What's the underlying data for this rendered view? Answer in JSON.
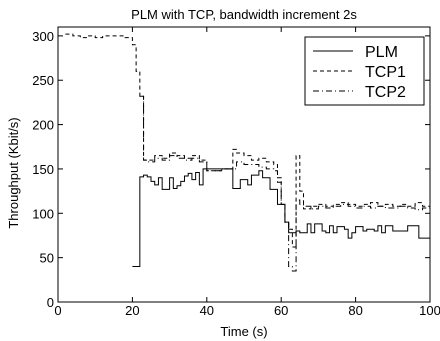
{
  "chart_data": {
    "type": "line",
    "title": "PLM with TCP, bandwidth increment 2s",
    "xlabel": "Time (s)",
    "ylabel": "Throughput (Kbit/s)",
    "xlim": [
      0,
      100
    ],
    "ylim": [
      0,
      310
    ],
    "xticks": [
      0,
      20,
      40,
      60,
      80,
      100
    ],
    "yticks": [
      0,
      50,
      100,
      150,
      200,
      250,
      300
    ],
    "grid": false,
    "legend_position": "top-right",
    "series": [
      {
        "name": "PLM",
        "style": "solid",
        "x": [
          20,
          22,
          22,
          23,
          24,
          25,
          26,
          27,
          28,
          29,
          30,
          31,
          32,
          33,
          34,
          35,
          36,
          37,
          38,
          39,
          40,
          41,
          42,
          43,
          44,
          45,
          46,
          47,
          48,
          49,
          50,
          51,
          52,
          53,
          54,
          55,
          56,
          57,
          58,
          59,
          60,
          61,
          62,
          63,
          64,
          65,
          66,
          67,
          68,
          69,
          70,
          71,
          72,
          73,
          74,
          75,
          76,
          77,
          78,
          79,
          80,
          81,
          82,
          83,
          84,
          85,
          86,
          87,
          88,
          89,
          90,
          91,
          92,
          93,
          94,
          95,
          96,
          97,
          98,
          99,
          100
        ],
        "y": [
          40,
          40,
          141,
          143,
          141,
          136,
          132,
          140,
          127,
          127,
          140,
          128,
          131,
          136,
          142,
          145,
          138,
          146,
          132,
          150,
          150,
          150,
          150,
          150,
          150,
          150,
          150,
          128,
          128,
          138,
          138,
          132,
          143,
          143,
          148,
          140,
          140,
          127,
          127,
          110,
          110,
          90,
          78,
          78,
          80,
          78,
          78,
          88,
          78,
          88,
          88,
          80,
          78,
          86,
          78,
          85,
          85,
          82,
          72,
          78,
          85,
          85,
          80,
          82,
          82,
          80,
          86,
          78,
          86,
          86,
          80,
          80,
          80,
          80,
          86,
          86,
          86,
          72,
          72,
          72,
          72
        ]
      },
      {
        "name": "TCP1",
        "style": "dashed",
        "x": [
          2,
          4,
          6,
          8,
          10,
          12,
          14,
          16,
          18,
          20,
          21,
          22,
          23,
          24,
          26,
          28,
          30,
          32,
          34,
          36,
          38,
          40,
          42,
          44,
          46,
          47,
          48,
          50,
          52,
          54,
          56,
          58,
          59,
          60,
          61,
          62,
          63,
          64,
          65,
          66,
          68,
          70,
          72,
          74,
          76,
          78,
          80,
          82,
          84,
          86,
          88,
          90,
          92,
          94,
          96,
          98,
          100
        ],
        "y": [
          302,
          300,
          298,
          300,
          298,
          300,
          300,
          300,
          298,
          290,
          260,
          232,
          160,
          160,
          165,
          162,
          168,
          165,
          162,
          165,
          160,
          148,
          148,
          150,
          150,
          172,
          168,
          165,
          160,
          162,
          158,
          155,
          140,
          110,
          90,
          82,
          62,
          165,
          125,
          105,
          108,
          110,
          108,
          110,
          112,
          110,
          108,
          110,
          112,
          108,
          110,
          108,
          110,
          108,
          112,
          108,
          112
        ]
      },
      {
        "name": "TCP2",
        "style": "dashdot",
        "x": [
          22,
          23,
          24,
          26,
          28,
          30,
          32,
          34,
          36,
          38,
          40,
          42,
          44,
          46,
          48,
          50,
          52,
          54,
          56,
          58,
          59,
          60,
          61,
          62,
          63,
          64,
          65,
          66,
          68,
          70,
          72,
          74,
          76,
          78,
          80,
          82,
          84,
          86,
          88,
          90,
          92,
          94,
          96,
          98,
          100
        ],
        "y": [
          232,
          160,
          158,
          162,
          160,
          165,
          162,
          160,
          162,
          158,
          148,
          148,
          150,
          150,
          158,
          155,
          155,
          152,
          150,
          148,
          135,
          110,
          90,
          40,
          35,
          115,
          110,
          108,
          105,
          108,
          106,
          108,
          110,
          108,
          106,
          108,
          106,
          108,
          106,
          106,
          108,
          106,
          104,
          106,
          106
        ]
      }
    ]
  }
}
